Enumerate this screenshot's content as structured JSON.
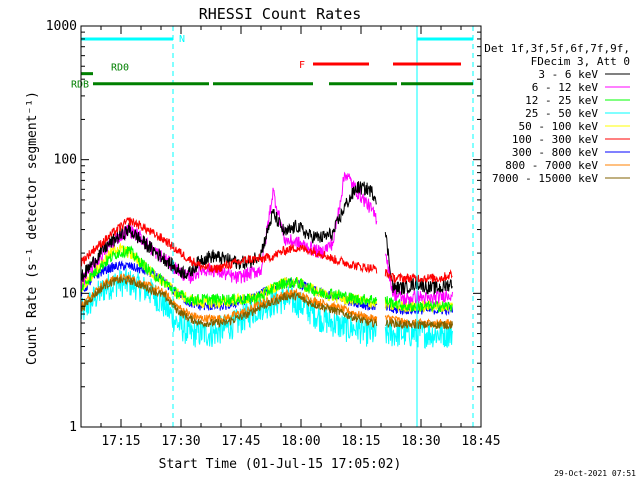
{
  "chart_data": {
    "type": "line",
    "title": "RHESSI Count Rates",
    "xlabel": "Start Time (01-Jul-15 17:05:02)",
    "ylabel": "Count Rate (s⁻¹ detector segment⁻¹)",
    "yscale": "log",
    "ylim": [
      1,
      1000
    ],
    "xlim_minutes": [
      0,
      100
    ],
    "x_tick_labels": [
      "17:15",
      "17:30",
      "17:45",
      "18:00",
      "18:15",
      "18:30",
      "18:45"
    ],
    "y_tick_labels": [
      "1",
      "10",
      "100",
      "1000"
    ],
    "x_ticks_minutes": [
      10,
      25,
      40,
      55,
      70,
      85,
      100
    ],
    "y_ticks": [
      1,
      10,
      100,
      1000
    ],
    "timestamp": "29-Oct-2021 07:51",
    "legend_header": [
      "Det 1f,3f,5f,6f,7f,9f,",
      "FDecim 3, Att 0"
    ],
    "legend_position": "right",
    "grid": false,
    "background": "#ffffff",
    "axis_color": "#000000",
    "x_minutes": [
      0,
      3,
      6,
      9,
      12,
      15,
      18,
      21,
      24,
      27,
      30,
      33,
      36,
      39,
      42,
      45,
      48,
      51,
      54,
      57,
      60,
      63,
      66,
      69,
      72,
      75,
      78,
      81,
      84,
      87,
      90,
      93
    ],
    "data_gap_minutes": [
      74,
      76
    ],
    "series": [
      {
        "name": "3 - 6 keV",
        "color": "#000000",
        "values": [
          13,
          17,
          22,
          26,
          30,
          25,
          21,
          18,
          15,
          14,
          18,
          19,
          18,
          17,
          17,
          20,
          40,
          28,
          32,
          27,
          26,
          28,
          45,
          62,
          60,
          48,
          11,
          11,
          12,
          11,
          11,
          12
        ]
      },
      {
        "name": "6 - 12 keV",
        "color": "#ff00ff",
        "values": [
          12,
          16,
          21,
          26,
          30,
          26,
          21,
          18,
          15,
          13,
          15,
          15,
          14,
          13,
          14,
          15,
          58,
          25,
          24,
          22,
          20,
          24,
          80,
          58,
          45,
          32,
          10,
          9,
          9.5,
          9,
          9.5,
          10
        ]
      },
      {
        "name": "12 - 25 keV",
        "color": "#00ff00",
        "values": [
          11,
          14,
          17,
          20,
          21,
          17,
          14,
          12,
          10,
          9,
          9,
          9,
          9,
          9,
          9,
          9.5,
          11,
          12,
          12,
          11,
          10,
          10,
          9.5,
          9,
          9,
          9,
          8.5,
          8,
          8,
          8,
          8,
          8
        ]
      },
      {
        "name": "25 - 50 keV",
        "color": "#00ffff",
        "values": [
          7,
          9,
          11,
          12,
          12,
          11,
          10,
          8,
          6,
          5,
          5,
          5,
          5.5,
          6,
          7,
          8,
          8.5,
          9,
          8.5,
          7.5,
          6.5,
          6,
          5.5,
          5.5,
          5,
          5,
          5,
          5,
          5,
          5,
          5,
          5
        ]
      },
      {
        "name": "50 - 100 keV",
        "color": "#ffff00",
        "values": [
          11,
          14,
          18,
          22,
          20,
          17,
          14,
          12,
          10,
          9,
          8.5,
          8.5,
          8.5,
          9,
          9,
          9.5,
          11,
          12,
          12,
          11,
          10,
          9.5,
          9,
          9,
          8.5,
          8.5,
          8,
          8,
          8,
          8,
          8,
          8
        ]
      },
      {
        "name": "100 - 300 keV",
        "color": "#ff0000",
        "values": [
          17,
          21,
          25,
          30,
          35,
          32,
          28,
          25,
          21,
          18,
          16,
          15,
          16,
          17,
          18,
          18,
          19,
          21,
          22,
          21,
          20,
          18,
          17,
          16,
          15.5,
          15,
          13,
          13,
          13,
          13,
          13,
          14
        ]
      },
      {
        "name": "300 - 800 keV",
        "color": "#0000ff",
        "values": [
          10,
          13,
          15,
          16,
          16,
          15,
          14,
          12,
          10,
          8.5,
          8,
          8,
          8,
          8.5,
          9,
          10,
          11,
          12,
          12,
          11,
          10,
          9.5,
          9,
          8.5,
          8,
          8,
          7.5,
          7.5,
          7.5,
          7.5,
          7.5,
          7.5
        ]
      },
      {
        "name": "800 - 7000 keV",
        "color": "#ff8000",
        "values": [
          8,
          10,
          12,
          13,
          13,
          12,
          11,
          10,
          8,
          7,
          6.5,
          6.5,
          6.5,
          7,
          7.5,
          8.5,
          9,
          10,
          10,
          9,
          8.5,
          8,
          7.5,
          7,
          6.5,
          6.5,
          6.5,
          6,
          6,
          6,
          6,
          6
        ]
      },
      {
        "name": "7000 - 15000 keV",
        "color": "#806000",
        "values": [
          7.5,
          9.5,
          11.5,
          12.5,
          12.5,
          11.5,
          10.5,
          9.5,
          7.5,
          6.5,
          6,
          6,
          6,
          6.5,
          7,
          8,
          8.5,
          9.5,
          9.5,
          8.5,
          8,
          7.5,
          7,
          6.5,
          6,
          6,
          6,
          5.8,
          5.8,
          5.8,
          5.8,
          5.8
        ]
      }
    ],
    "state_bars": [
      {
        "label": "N",
        "color": "#00ffff",
        "y": 800,
        "segments": [
          [
            0,
            23
          ],
          [
            84,
            98
          ]
        ]
      },
      {
        "label": "F",
        "color": "#ff0000",
        "y": 520,
        "segments": [
          [
            58,
            72
          ],
          [
            78,
            95
          ]
        ]
      },
      {
        "label": "RD0",
        "color": "#008000",
        "y": 440,
        "segments": [
          [
            0,
            3
          ]
        ]
      },
      {
        "label": "RDB",
        "color": "#008000",
        "y": 370,
        "segments": [
          [
            3,
            32
          ],
          [
            33,
            58
          ],
          [
            62,
            79
          ],
          [
            80,
            98
          ]
        ]
      }
    ],
    "vlines": [
      {
        "x_minutes": 0,
        "style": "solid",
        "color": "#00ffff"
      },
      {
        "x_minutes": 23,
        "style": "dashed",
        "color": "#00ffff"
      },
      {
        "x_minutes": 84,
        "style": "solid",
        "color": "#00ffff"
      },
      {
        "x_minutes": 98,
        "style": "dashed",
        "color": "#00ffff"
      }
    ]
  }
}
